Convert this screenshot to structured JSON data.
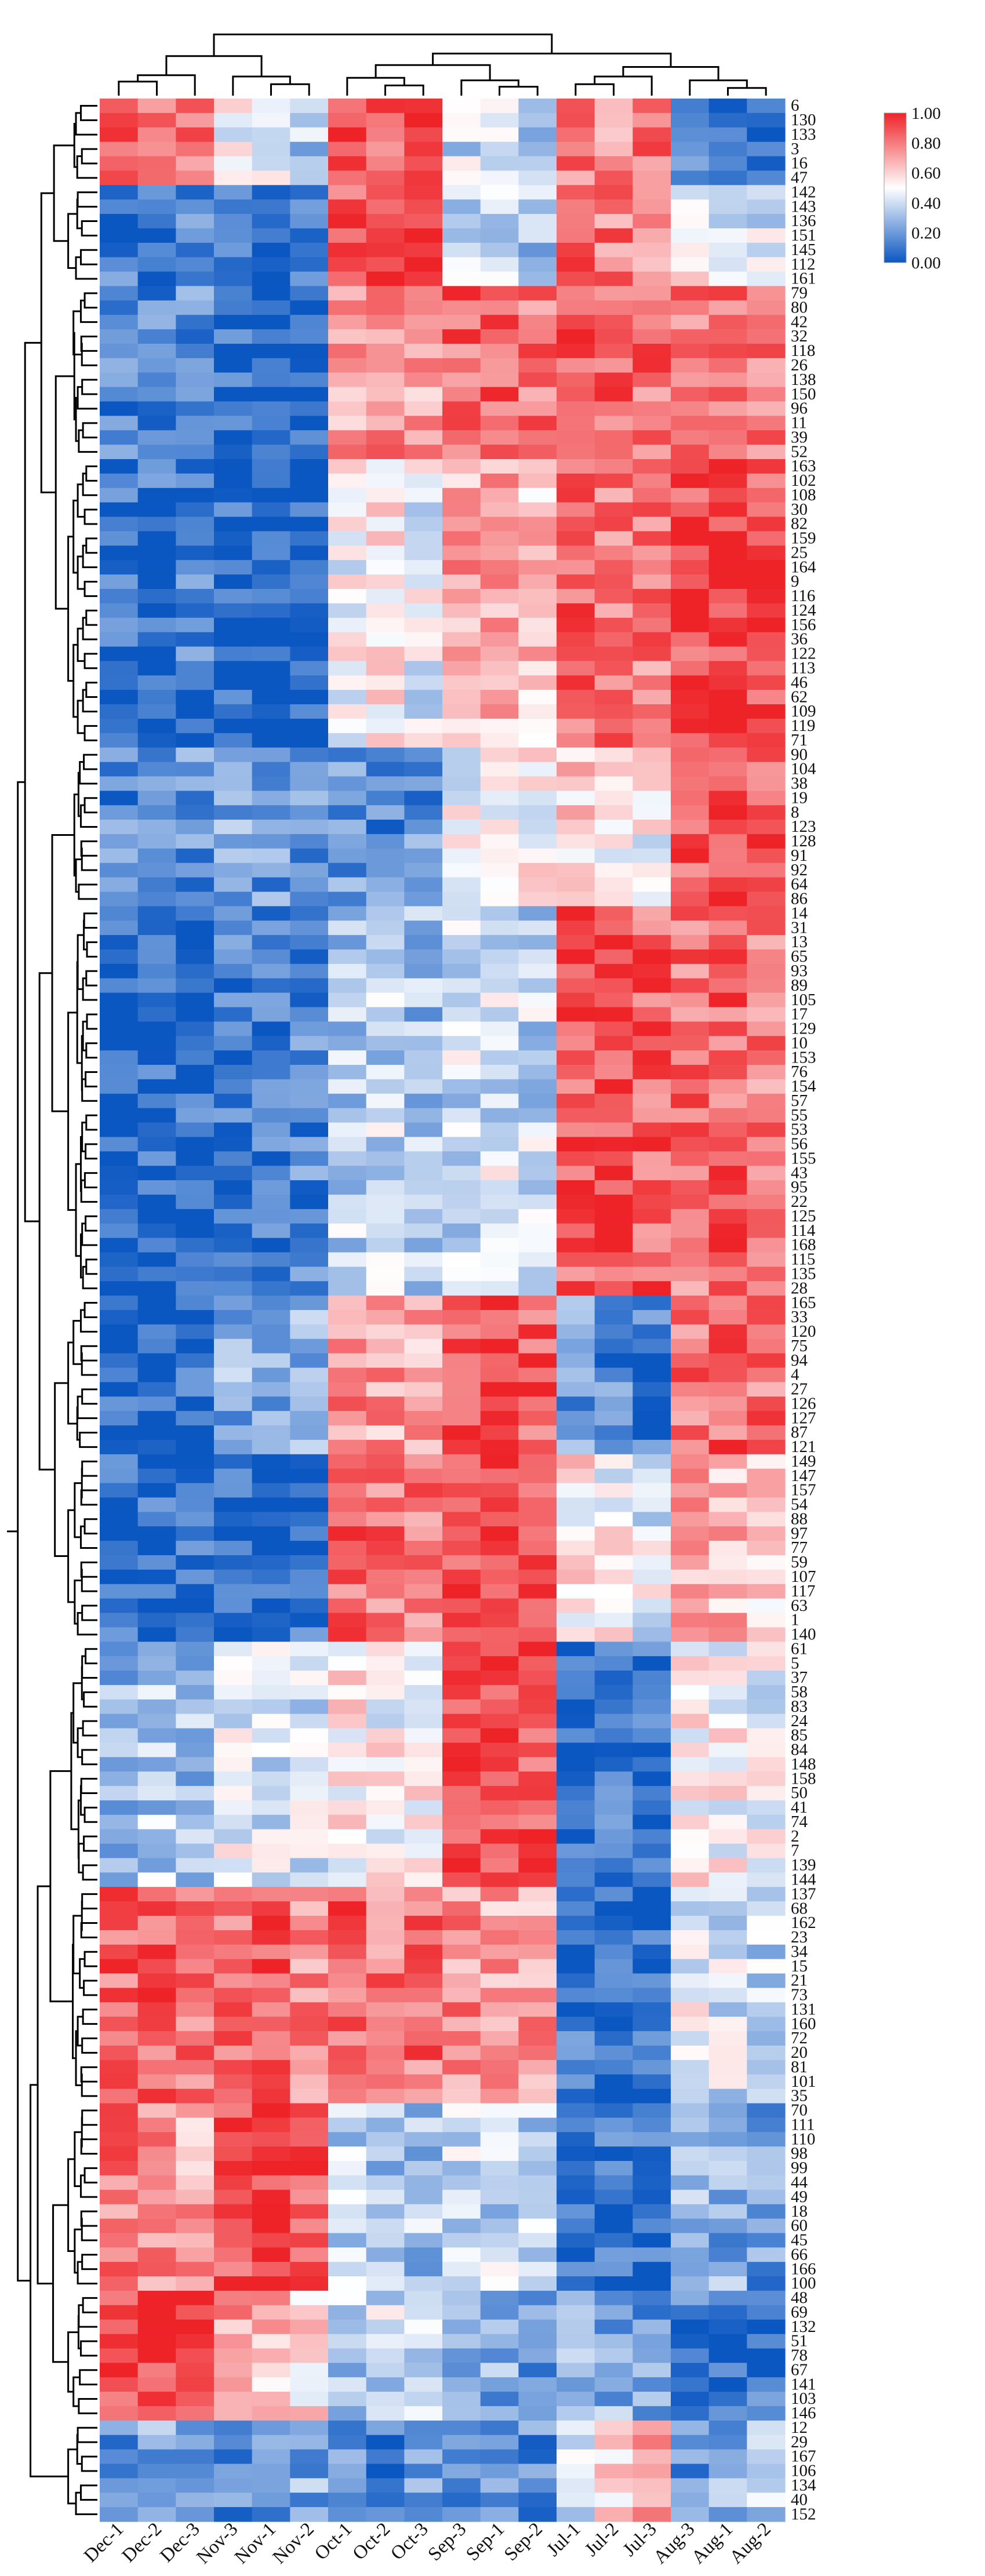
{
  "chart_data": {
    "type": "heatmap",
    "title": "",
    "xlabel": "",
    "ylabel": "",
    "columns": [
      "Dec-1",
      "Dec-2",
      "Dec-3",
      "Nov-3",
      "Nov-1",
      "Nov-2",
      "Oct-1",
      "Oct-2",
      "Oct-3",
      "Sep-3",
      "Sep-1",
      "Sep-2",
      "Jul-1",
      "Jul-2",
      "Jul-3",
      "Aug-3",
      "Aug-1",
      "Aug-2"
    ],
    "rows": [
      "6",
      "130",
      "133",
      "3",
      "16",
      "47",
      "142",
      "143",
      "136",
      "151",
      "145",
      "112",
      "161",
      "79",
      "80",
      "42",
      "32",
      "118",
      "26",
      "138",
      "150",
      "96",
      "11",
      "39",
      "52",
      "163",
      "102",
      "108",
      "30",
      "82",
      "159",
      "25",
      "164",
      "9",
      "116",
      "124",
      "156",
      "36",
      "122",
      "113",
      "46",
      "62",
      "109",
      "119",
      "71",
      "90",
      "104",
      "38",
      "19",
      "8",
      "123",
      "128",
      "91",
      "92",
      "64",
      "86",
      "14",
      "31",
      "13",
      "65",
      "93",
      "89",
      "105",
      "17",
      "129",
      "10",
      "153",
      "76",
      "154",
      "57",
      "55",
      "53",
      "56",
      "155",
      "43",
      "95",
      "22",
      "125",
      "114",
      "168",
      "115",
      "135",
      "28",
      "165",
      "33",
      "120",
      "75",
      "94",
      "4",
      "27",
      "126",
      "127",
      "87",
      "121",
      "149",
      "147",
      "157",
      "54",
      "88",
      "97",
      "77",
      "59",
      "107",
      "117",
      "63",
      "1",
      "140",
      "61",
      "5",
      "37",
      "58",
      "83",
      "24",
      "85",
      "84",
      "148",
      "158",
      "50",
      "41",
      "74",
      "2",
      "7",
      "139",
      "144",
      "137",
      "68",
      "162",
      "23",
      "34",
      "15",
      "21",
      "73",
      "131",
      "160",
      "72",
      "20",
      "81",
      "101",
      "35",
      "70",
      "111",
      "110",
      "98",
      "99",
      "44",
      "49",
      "18",
      "60",
      "45",
      "66",
      "166",
      "100",
      "48",
      "69",
      "132",
      "51",
      "78",
      "67",
      "141",
      "103",
      "146",
      "12",
      "29",
      "167",
      "106",
      "134",
      "40",
      "152"
    ],
    "row_clusters": [
      {
        "rows": [
          1,
          6
        ],
        "pattern": [
          0.82,
          0.78,
          0.85,
          0.45,
          0.4,
          0.35,
          0.92,
          0.85,
          0.9,
          0.4,
          0.45,
          0.35,
          0.8,
          0.75,
          0.85,
          0.2,
          0.1,
          0.05
        ]
      },
      {
        "rows": [
          7,
          13
        ],
        "pattern": [
          0.1,
          0.08,
          0.12,
          0.1,
          0.05,
          0.08,
          0.9,
          0.95,
          0.88,
          0.35,
          0.4,
          0.3,
          0.85,
          0.8,
          0.78,
          0.55,
          0.45,
          0.4
        ]
      },
      {
        "rows": [
          14,
          25
        ],
        "pattern": [
          0.12,
          0.15,
          0.18,
          0.05,
          0.03,
          0.05,
          0.72,
          0.75,
          0.7,
          0.85,
          0.88,
          0.8,
          0.88,
          0.85,
          0.82,
          0.8,
          0.85,
          0.82
        ]
      },
      {
        "rows": [
          26,
          45
        ],
        "pattern": [
          0.08,
          0.1,
          0.12,
          0.05,
          0.03,
          0.05,
          0.5,
          0.55,
          0.45,
          0.7,
          0.68,
          0.65,
          0.85,
          0.82,
          0.8,
          0.92,
          0.95,
          0.9
        ]
      },
      {
        "rows": [
          46,
          56
        ],
        "pattern": [
          0.15,
          0.12,
          0.18,
          0.25,
          0.2,
          0.18,
          0.2,
          0.15,
          0.18,
          0.5,
          0.55,
          0.52,
          0.6,
          0.55,
          0.5,
          0.88,
          0.9,
          0.85
        ]
      },
      {
        "rows": [
          57,
          83
        ],
        "pattern": [
          0.05,
          0.06,
          0.08,
          0.12,
          0.1,
          0.15,
          0.35,
          0.38,
          0.3,
          0.4,
          0.42,
          0.38,
          0.88,
          0.92,
          0.85,
          0.82,
          0.85,
          0.8
        ]
      },
      {
        "rows": [
          84,
          94
        ],
        "pattern": [
          0.05,
          0.08,
          0.1,
          0.25,
          0.22,
          0.28,
          0.75,
          0.72,
          0.7,
          0.9,
          0.92,
          0.88,
          0.2,
          0.15,
          0.1,
          0.8,
          0.85,
          0.82
        ]
      },
      {
        "rows": [
          95,
          107
        ],
        "pattern": [
          0.05,
          0.06,
          0.08,
          0.05,
          0.04,
          0.06,
          0.85,
          0.82,
          0.8,
          0.92,
          0.95,
          0.9,
          0.55,
          0.5,
          0.45,
          0.7,
          0.65,
          0.6
        ]
      },
      {
        "rows": [
          108,
          124
        ],
        "pattern": [
          0.3,
          0.35,
          0.32,
          0.45,
          0.42,
          0.4,
          0.55,
          0.5,
          0.52,
          0.92,
          0.95,
          0.9,
          0.05,
          0.08,
          0.06,
          0.55,
          0.5,
          0.45
        ]
      },
      {
        "rows": [
          125,
          139
        ],
        "pattern": [
          0.85,
          0.88,
          0.82,
          0.8,
          0.85,
          0.78,
          0.85,
          0.8,
          0.82,
          0.75,
          0.7,
          0.72,
          0.08,
          0.06,
          0.05,
          0.45,
          0.4,
          0.35
        ]
      },
      {
        "rows": [
          140,
          152
        ],
        "pattern": [
          0.8,
          0.75,
          0.7,
          0.92,
          0.95,
          0.9,
          0.35,
          0.3,
          0.32,
          0.4,
          0.38,
          0.35,
          0.05,
          0.08,
          0.1,
          0.3,
          0.25,
          0.2
        ]
      },
      {
        "rows": [
          153,
          161
        ],
        "pattern": [
          0.92,
          0.9,
          0.95,
          0.7,
          0.65,
          0.6,
          0.35,
          0.4,
          0.38,
          0.2,
          0.25,
          0.22,
          0.3,
          0.25,
          0.2,
          0.1,
          0.05,
          0.08
        ]
      },
      {
        "rows": [
          162,
          168
        ],
        "pattern": [
          0.15,
          0.25,
          0.2,
          0.15,
          0.2,
          0.25,
          0.15,
          0.12,
          0.18,
          0.15,
          0.2,
          0.15,
          0.45,
          0.55,
          0.7,
          0.2,
          0.25,
          0.35
        ]
      }
    ],
    "legend": {
      "position": "top-right",
      "ticks": [
        "1.00",
        "0.80",
        "0.60",
        "0.40",
        "0.20",
        "0.00"
      ],
      "colors": [
        "#ee2328",
        "#ffffff",
        "#0b57c2"
      ]
    }
  }
}
